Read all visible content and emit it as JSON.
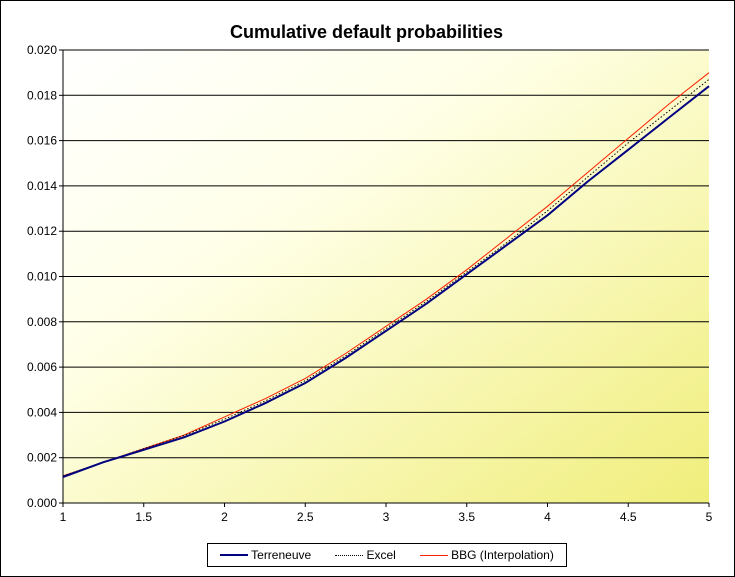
{
  "chart_data": {
    "type": "line",
    "title": "Cumulative default probabilities",
    "xlabel": "",
    "ylabel": "",
    "xlim": [
      1,
      5
    ],
    "ylim": [
      0,
      0.02
    ],
    "x_ticks": [
      "1",
      "1.5",
      "2",
      "2.5",
      "3",
      "3.5",
      "4",
      "4.5",
      "5"
    ],
    "y_ticks": [
      "0.000",
      "0.002",
      "0.004",
      "0.006",
      "0.008",
      "0.010",
      "0.012",
      "0.014",
      "0.016",
      "0.018",
      "0.020"
    ],
    "grid": "horizontal",
    "legend_position": "bottom",
    "series": [
      {
        "name": "Terreneuve",
        "color": "#000080",
        "style": "solid",
        "x": [
          1,
          1.25,
          1.5,
          1.75,
          2.0,
          2.25,
          2.5,
          2.75,
          3.0,
          3.25,
          3.5,
          3.75,
          4.0,
          4.25,
          4.5,
          4.75,
          5.0
        ],
        "y": [
          0.00115,
          0.0018,
          0.00235,
          0.0029,
          0.0036,
          0.0044,
          0.0053,
          0.0064,
          0.0076,
          0.0088,
          0.0101,
          0.0114,
          0.0127,
          0.0142,
          0.0156,
          0.017,
          0.0184
        ]
      },
      {
        "name": "Excel",
        "color": "#000000",
        "style": "dotted",
        "x": [
          1,
          1.25,
          1.5,
          1.75,
          2.0,
          2.25,
          2.5,
          2.75,
          3.0,
          3.25,
          3.5,
          3.75,
          4.0,
          4.25,
          4.5,
          4.75,
          5.0
        ],
        "y": [
          0.0012,
          0.0018,
          0.0024,
          0.00298,
          0.0037,
          0.0045,
          0.0054,
          0.0065,
          0.0077,
          0.0089,
          0.0102,
          0.0115,
          0.0129,
          0.0144,
          0.0159,
          0.0173,
          0.0187
        ]
      },
      {
        "name": "BBG (Interpolation)",
        "color": "#ff2000",
        "style": "solid",
        "x": [
          1,
          1.25,
          1.5,
          1.75,
          2.0,
          2.25,
          2.5,
          2.75,
          3.0,
          3.25,
          3.5,
          3.75,
          4.0,
          4.25,
          4.5,
          4.75,
          5.0
        ],
        "y": [
          0.0012,
          0.0018,
          0.0024,
          0.003,
          0.0038,
          0.0046,
          0.0055,
          0.0066,
          0.0078,
          0.009,
          0.0103,
          0.0117,
          0.0131,
          0.0146,
          0.0161,
          0.0176,
          0.019
        ]
      }
    ]
  }
}
